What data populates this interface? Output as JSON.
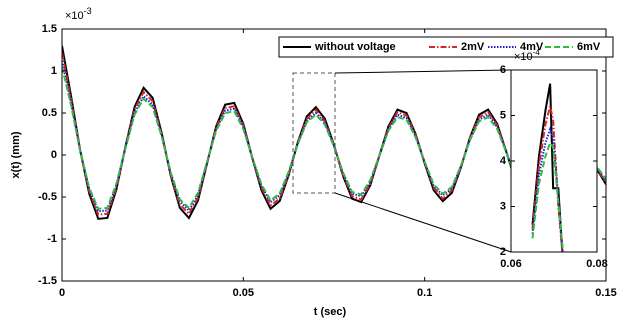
{
  "chart_data": [
    {
      "type": "line",
      "xlabel": "t (sec)",
      "ylabel": "x(t) (mm)",
      "exponent_base": "×10",
      "exponent_power": "-3",
      "xlim": [
        0,
        0.15
      ],
      "ylim": [
        -1.5,
        1.5
      ],
      "xticks": [
        0,
        0.05,
        0.1,
        0.15
      ],
      "yticks": [
        -1.5,
        -1,
        -0.5,
        0,
        0.5,
        1,
        1.5
      ],
      "legend": "top-right",
      "grid": false,
      "x": [
        0,
        0.0025,
        0.005,
        0.0075,
        0.01,
        0.0125,
        0.015,
        0.0175,
        0.02,
        0.0225,
        0.025,
        0.0275,
        0.03,
        0.0325,
        0.035,
        0.0375,
        0.04,
        0.0425,
        0.045,
        0.0475,
        0.05,
        0.0525,
        0.055,
        0.0575,
        0.06,
        0.0625,
        0.065,
        0.0675,
        0.07,
        0.0725,
        0.075,
        0.0775,
        0.08,
        0.0825,
        0.085,
        0.0875,
        0.09,
        0.0925,
        0.095,
        0.0975,
        0.1,
        0.1025,
        0.105,
        0.1075,
        0.11,
        0.1125,
        0.115,
        0.1175,
        0.12,
        0.1225,
        0.125,
        0.1275,
        0.13,
        0.1325,
        0.135,
        0.1375,
        0.14,
        0.1425,
        0.145,
        0.1475,
        0.15
      ],
      "series": [
        {
          "name": "without voltage",
          "color": "#000000",
          "style": "solid",
          "values": [
            1.3,
            0.7,
            0.06,
            -0.46,
            -0.76,
            -0.75,
            -0.41,
            0.1,
            0.57,
            0.8,
            0.68,
            0.26,
            -0.25,
            -0.63,
            -0.75,
            -0.54,
            -0.1,
            0.34,
            0.6,
            0.62,
            0.37,
            -0.04,
            -0.42,
            -0.64,
            -0.55,
            -0.24,
            0.15,
            0.46,
            0.57,
            0.43,
            0.12,
            -0.25,
            -0.52,
            -0.56,
            -0.36,
            -0.01,
            0.34,
            0.54,
            0.5,
            0.25,
            -0.1,
            -0.42,
            -0.55,
            -0.45,
            -0.15,
            0.21,
            0.48,
            0.54,
            0.37,
            0.04,
            -0.31,
            -0.52,
            -0.52,
            -0.28,
            0.07,
            0.39,
            0.55,
            0.47,
            0.19,
            -0.17,
            -0.35
          ]
        },
        {
          "name": "2mV",
          "color": "#d62728",
          "style": "dashdot",
          "values": [
            1.22,
            0.66,
            0.06,
            -0.43,
            -0.71,
            -0.7,
            -0.39,
            0.09,
            0.54,
            0.75,
            0.64,
            0.24,
            -0.24,
            -0.59,
            -0.7,
            -0.51,
            -0.09,
            0.32,
            0.56,
            0.58,
            0.35,
            -0.04,
            -0.39,
            -0.6,
            -0.52,
            -0.23,
            0.14,
            0.43,
            0.54,
            0.4,
            0.11,
            -0.24,
            -0.49,
            -0.53,
            -0.34,
            -0.01,
            0.32,
            0.51,
            0.47,
            0.24,
            -0.09,
            -0.39,
            -0.52,
            -0.42,
            -0.14,
            0.2,
            0.45,
            0.51,
            0.35,
            0.04,
            -0.29,
            -0.49,
            -0.49,
            -0.26,
            0.07,
            0.37,
            0.52,
            0.44,
            0.18,
            -0.16,
            -0.33
          ]
        },
        {
          "name": "4mV",
          "color": "#1f1fd6",
          "style": "dotted",
          "values": [
            1.12,
            0.62,
            0.05,
            -0.4,
            -0.67,
            -0.66,
            -0.36,
            0.09,
            0.5,
            0.7,
            0.6,
            0.23,
            -0.22,
            -0.55,
            -0.66,
            -0.48,
            -0.09,
            0.3,
            0.53,
            0.55,
            0.33,
            -0.04,
            -0.37,
            -0.56,
            -0.48,
            -0.21,
            0.13,
            0.4,
            0.5,
            0.38,
            0.11,
            -0.22,
            -0.46,
            -0.49,
            -0.32,
            -0.01,
            0.3,
            0.48,
            0.44,
            0.22,
            -0.09,
            -0.37,
            -0.48,
            -0.4,
            -0.13,
            0.18,
            0.42,
            0.48,
            0.33,
            0.04,
            -0.27,
            -0.46,
            -0.46,
            -0.25,
            0.06,
            0.34,
            0.48,
            0.41,
            0.17,
            -0.15,
            -0.31
          ]
        },
        {
          "name": "6mV",
          "color": "#2bbf3c",
          "style": "dashed",
          "values": [
            1.05,
            0.59,
            0.05,
            -0.39,
            -0.64,
            -0.63,
            -0.34,
            0.08,
            0.48,
            0.67,
            0.57,
            0.22,
            -0.21,
            -0.53,
            -0.63,
            -0.45,
            -0.08,
            0.29,
            0.5,
            0.52,
            0.31,
            -0.03,
            -0.35,
            -0.54,
            -0.46,
            -0.2,
            0.13,
            0.39,
            0.48,
            0.36,
            0.1,
            -0.21,
            -0.44,
            -0.47,
            -0.3,
            -0.01,
            0.29,
            0.45,
            0.42,
            0.21,
            -0.08,
            -0.35,
            -0.46,
            -0.38,
            -0.13,
            0.18,
            0.4,
            0.45,
            0.31,
            0.03,
            -0.26,
            -0.44,
            -0.44,
            -0.24,
            0.06,
            0.33,
            0.46,
            0.39,
            0.16,
            -0.14,
            -0.29
          ]
        }
      ]
    },
    {
      "type": "line",
      "exponent_base": "×10",
      "exponent_power": "-4",
      "xlim": [
        0.06,
        0.08
      ],
      "ylim": [
        2,
        6
      ],
      "xticks": [
        0.06,
        0.08
      ],
      "yticks": [
        2,
        3,
        4,
        5,
        6
      ],
      "grid": false,
      "x": [
        0.065,
        0.0665,
        0.068,
        0.0691,
        0.0698,
        0.071,
        0.0722
      ],
      "series": [
        {
          "name": "without voltage",
          "color": "#000000",
          "style": "solid",
          "values": [
            2.6,
            4.1,
            5.1,
            5.7,
            3.4,
            3.4,
            1.6
          ]
        },
        {
          "name": "2mV",
          "color": "#d62728",
          "style": "dashdot",
          "values": [
            2.5,
            3.9,
            4.8,
            5.2,
            4.9,
            3.0,
            1.7
          ]
        },
        {
          "name": "4mV",
          "color": "#1f1fd6",
          "style": "dotted",
          "values": [
            2.4,
            3.7,
            4.4,
            4.7,
            4.5,
            3.2,
            1.8
          ]
        },
        {
          "name": "6mV",
          "color": "#2bbf3c",
          "style": "dashed",
          "values": [
            2.3,
            3.5,
            4.1,
            4.4,
            4.3,
            3.1,
            1.9
          ]
        }
      ]
    }
  ]
}
